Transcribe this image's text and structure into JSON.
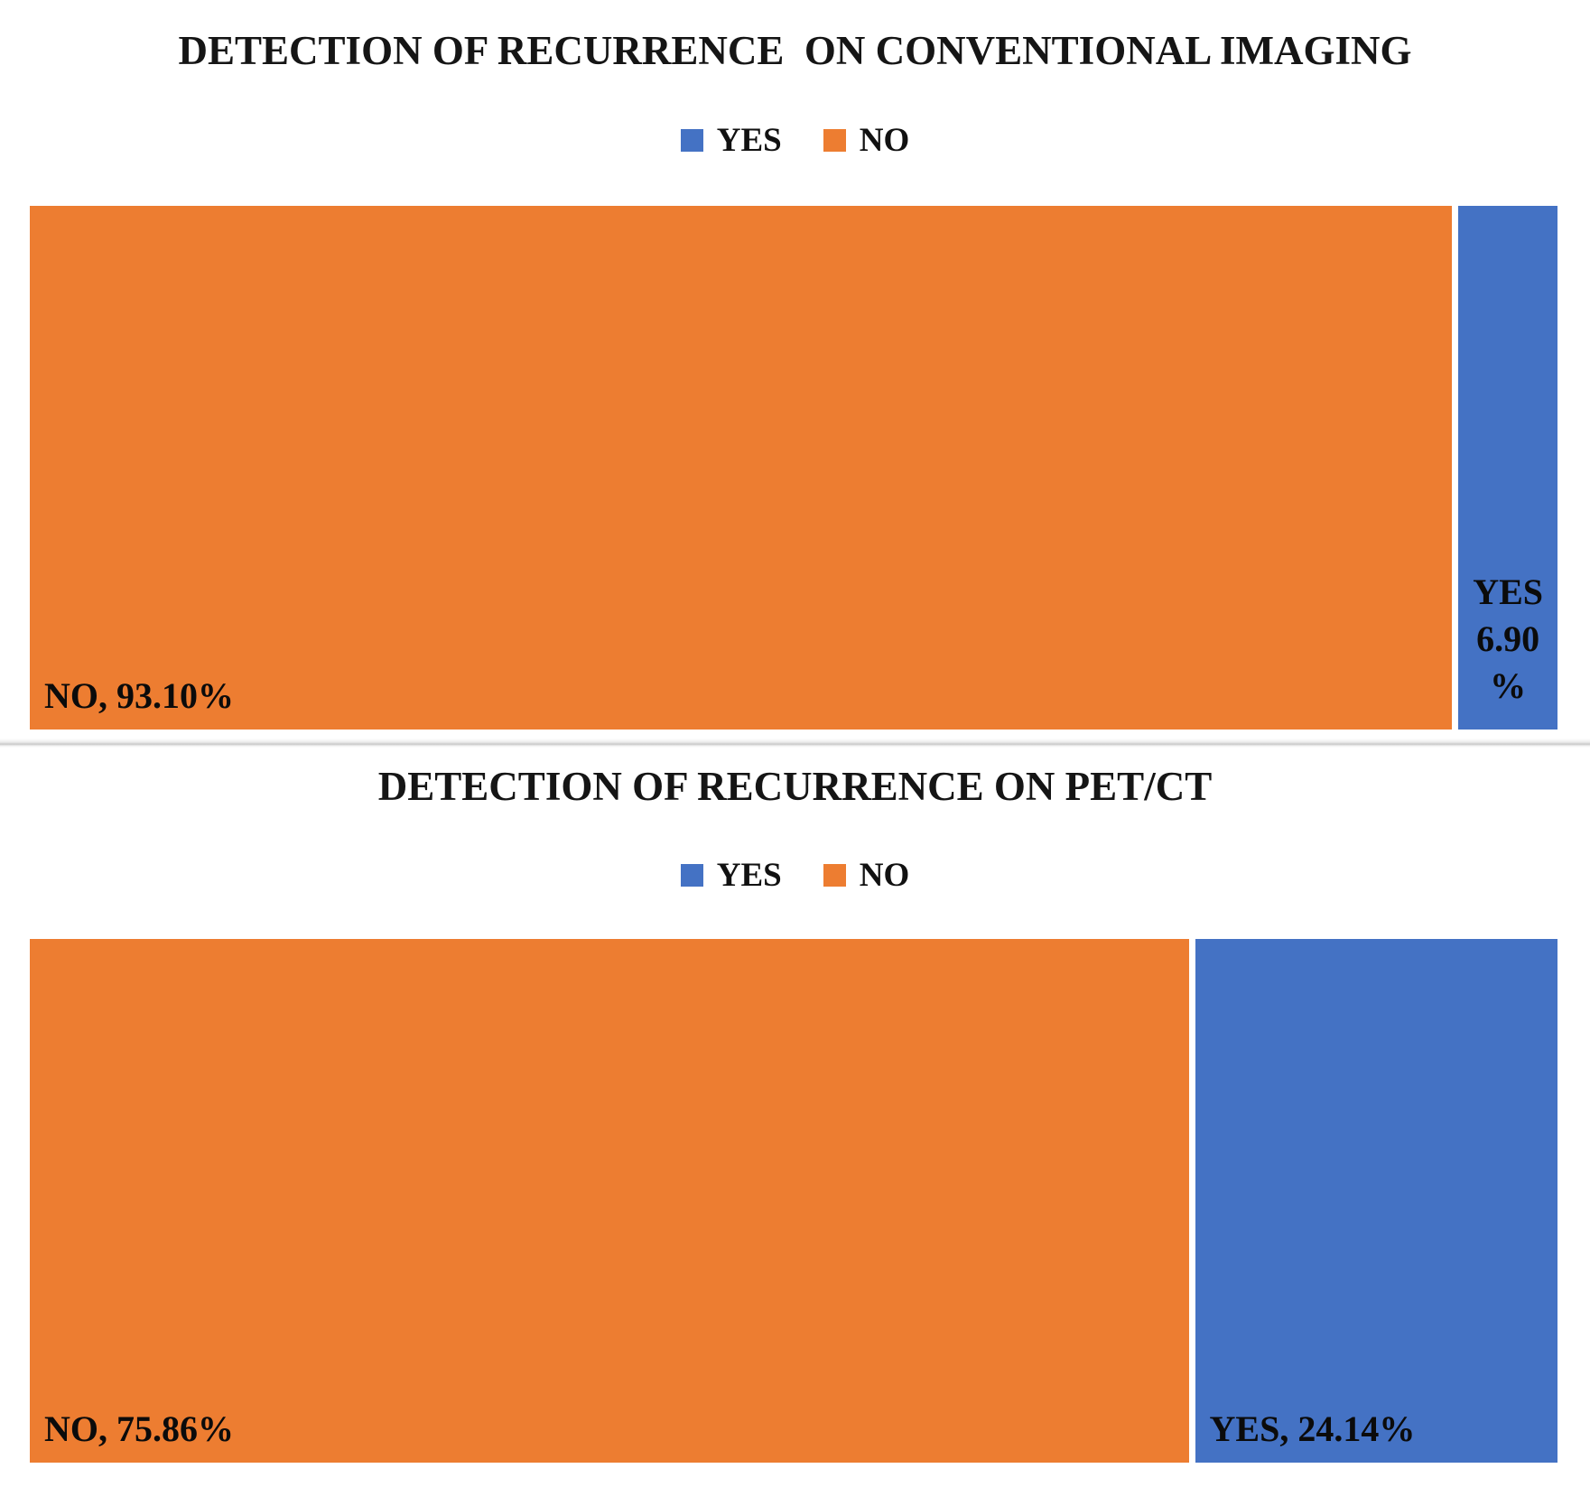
{
  "colors": {
    "yes_blue": "#4472C4",
    "no_orange": "#ED7D31",
    "label_text": "#0b0b0b",
    "title_text": "#151515"
  },
  "chart_data": [
    {
      "type": "bar",
      "subtype": "stacked-100-horizontal",
      "title": "DETECTION OF RECURRENCE  ON CONVENTIONAL IMAGING",
      "legend": [
        "YES",
        "NO"
      ],
      "legend_position": "top",
      "legend_colors": [
        "#4472C4",
        "#ED7D31"
      ],
      "categories": [
        "Detection of recurrence"
      ],
      "series": [
        {
          "name": "YES",
          "values": [
            6.9
          ],
          "color": "#4472C4",
          "data_label": "YES 6.90 %"
        },
        {
          "name": "NO",
          "values": [
            93.1
          ],
          "color": "#ED7D31",
          "data_label": "NO, 93.10%"
        }
      ],
      "xlim": [
        0,
        100
      ],
      "axes_visible": false,
      "grid": false
    },
    {
      "type": "bar",
      "subtype": "stacked-100-horizontal",
      "title": "DETECTION OF RECURRENCE ON PET/CT",
      "legend": [
        "YES",
        "NO"
      ],
      "legend_position": "top",
      "legend_colors": [
        "#4472C4",
        "#ED7D31"
      ],
      "categories": [
        "Detection of recurrence"
      ],
      "series": [
        {
          "name": "YES",
          "values": [
            24.14
          ],
          "color": "#4472C4",
          "data_label": "YES, 24.14%"
        },
        {
          "name": "NO",
          "values": [
            75.86
          ],
          "color": "#ED7D31",
          "data_label": "NO, 75.86%"
        }
      ],
      "xlim": [
        0,
        100
      ],
      "axes_visible": false,
      "grid": false
    }
  ]
}
